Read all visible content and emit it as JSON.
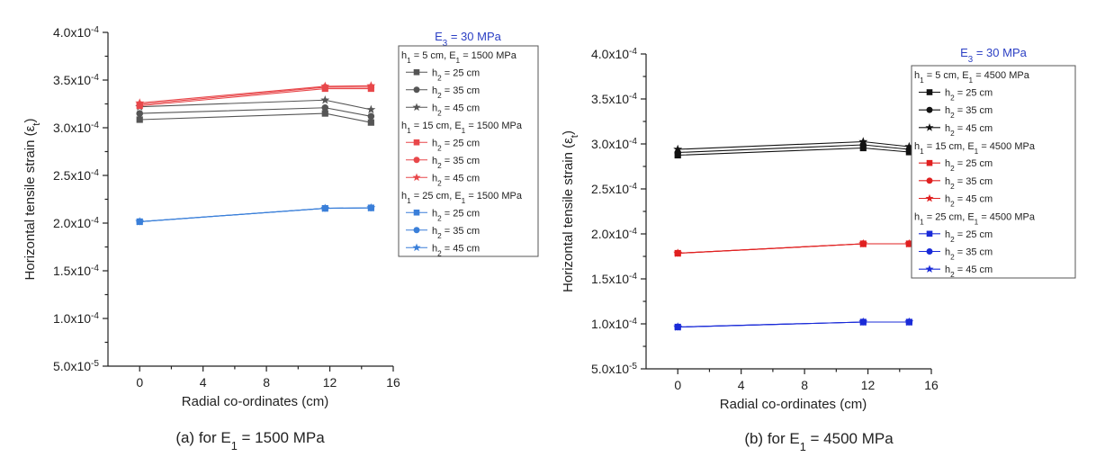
{
  "chart_data": [
    {
      "type": "line",
      "caption": "(a) for E1 = 1500 MPa",
      "caption_parts": {
        "pre": "(a) for E",
        "sub": "1",
        "post": " = 1500 MPa"
      },
      "xlabel": "Radial co-ordinates (cm)",
      "ylabel": "Horizontal tensile strain (εt)",
      "ylabel_parts": {
        "pre": "Horizontal tensile strain (ε",
        "sub": "t",
        "post": ")"
      },
      "xlim": [
        -2,
        16
      ],
      "ylim": [
        5e-05,
        0.0004
      ],
      "xticks": [
        0,
        4,
        8,
        12,
        16
      ],
      "xtick_labels": [
        "0",
        "4",
        "8",
        "12",
        "16"
      ],
      "yticks": [
        5e-05,
        0.0001,
        0.00015,
        0.0002,
        0.00025,
        0.0003,
        0.00035,
        0.0004
      ],
      "ytick_labels": [
        {
          "mant": "5.0x10",
          "exp": "-5"
        },
        {
          "mant": "1.0x10",
          "exp": "-4"
        },
        {
          "mant": "1.5x10",
          "exp": "-4"
        },
        {
          "mant": "2.0x10",
          "exp": "-4"
        },
        {
          "mant": "2.5x10",
          "exp": "-4"
        },
        {
          "mant": "3.0x10",
          "exp": "-4"
        },
        {
          "mant": "3.5x10",
          "exp": "-4"
        },
        {
          "mant": "4.0x10",
          "exp": "-4"
        }
      ],
      "grid": false,
      "legend_title": {
        "pre": "E",
        "sub": "3",
        "post": " = 30 MPa"
      },
      "legend_groups": [
        {
          "label": {
            "pre": "h",
            "sub": "1",
            "mid": " = 5 cm, E",
            "sub2": "1",
            "post": " = 1500 MPa"
          }
        },
        {
          "label": {
            "pre": "h",
            "sub": "1",
            "mid": " = 15 cm, E",
            "sub2": "1",
            "post": " = 1500 MPa"
          }
        },
        {
          "label": {
            "pre": "h",
            "sub": "1",
            "mid": " = 25 cm, E",
            "sub2": "1",
            "post": " = 1500 MPa"
          }
        }
      ],
      "x": [
        0,
        11.7,
        14.6
      ],
      "series": [
        {
          "group": 0,
          "label": {
            "pre": "h",
            "sub": "2",
            "post": " = 25 cm"
          },
          "marker": "square",
          "color": "#555555",
          "values": [
            0.0003085,
            0.000315,
            0.0003055
          ]
        },
        {
          "group": 0,
          "label": {
            "pre": "h",
            "sub": "2",
            "post": " = 35 cm"
          },
          "marker": "circle",
          "color": "#555555",
          "values": [
            0.000315,
            0.000321,
            0.000312
          ]
        },
        {
          "group": 0,
          "label": {
            "pre": "h",
            "sub": "2",
            "post": " = 45 cm"
          },
          "marker": "star",
          "color": "#555555",
          "values": [
            0.000322,
            0.000329,
            0.000319
          ]
        },
        {
          "group": 1,
          "label": {
            "pre": "h",
            "sub": "2",
            "post": " = 25 cm"
          },
          "marker": "square",
          "color": "#e8474a",
          "values": [
            0.000323,
            0.000341,
            0.000341
          ]
        },
        {
          "group": 1,
          "label": {
            "pre": "h",
            "sub": "2",
            "post": " = 35 cm"
          },
          "marker": "circle",
          "color": "#e8474a",
          "values": [
            0.0003245,
            0.0003425,
            0.0003425
          ]
        },
        {
          "group": 1,
          "label": {
            "pre": "h",
            "sub": "2",
            "post": " = 45 cm"
          },
          "marker": "star",
          "color": "#e8474a",
          "values": [
            0.000326,
            0.0003435,
            0.000344
          ]
        },
        {
          "group": 2,
          "label": {
            "pre": "h",
            "sub": "2",
            "post": " = 25 cm"
          },
          "marker": "square",
          "color": "#3a7fd9",
          "values": [
            0.0002015,
            0.0002155,
            0.000216
          ]
        },
        {
          "group": 2,
          "label": {
            "pre": "h",
            "sub": "2",
            "post": " = 35 cm"
          },
          "marker": "circle",
          "color": "#3a7fd9",
          "values": [
            0.0002015,
            0.0002155,
            0.000216
          ]
        },
        {
          "group": 2,
          "label": {
            "pre": "h",
            "sub": "2",
            "post": " = 45 cm"
          },
          "marker": "star",
          "color": "#3a7fd9",
          "values": [
            0.0002015,
            0.0002155,
            0.000216
          ]
        }
      ]
    },
    {
      "type": "line",
      "caption": "(b) for E1 = 4500 MPa",
      "caption_parts": {
        "pre": "(b) for E",
        "sub": "1",
        "post": " = 4500 MPa"
      },
      "xlabel": "Radial co-ordinates (cm)",
      "ylabel": "Horizontal tensile strain (εt)",
      "ylabel_parts": {
        "pre": "Horizontal tensile strain (ε",
        "sub": "t",
        "post": ")"
      },
      "xlim": [
        -2,
        16
      ],
      "ylim": [
        5e-05,
        0.0004
      ],
      "xticks": [
        0,
        4,
        8,
        12,
        16
      ],
      "xtick_labels": [
        "0",
        "4",
        "8",
        "12",
        "16"
      ],
      "yticks": [
        5e-05,
        0.0001,
        0.00015,
        0.0002,
        0.00025,
        0.0003,
        0.00035,
        0.0004
      ],
      "ytick_labels": [
        {
          "mant": "5.0x10",
          "exp": "-5"
        },
        {
          "mant": "1.0x10",
          "exp": "-4"
        },
        {
          "mant": "1.5x10",
          "exp": "-4"
        },
        {
          "mant": "2.0x10",
          "exp": "-4"
        },
        {
          "mant": "2.5x10",
          "exp": "-4"
        },
        {
          "mant": "3.0x10",
          "exp": "-4"
        },
        {
          "mant": "3.5x10",
          "exp": "-4"
        },
        {
          "mant": "4.0x10",
          "exp": "-4"
        }
      ],
      "grid": false,
      "legend_title": {
        "pre": "E",
        "sub": "3",
        "post": " = 30 MPa"
      },
      "legend_groups": [
        {
          "label": {
            "pre": "h",
            "sub": "1",
            "mid": " = 5 cm, E",
            "sub2": "1",
            "post": " = 4500 MPa"
          }
        },
        {
          "label": {
            "pre": "h",
            "sub": "1",
            "mid": " = 15 cm, E",
            "sub2": "1",
            "post": " = 4500 MPa"
          }
        },
        {
          "label": {
            "pre": "h",
            "sub": "1",
            "mid": " = 25 cm, E",
            "sub2": "1",
            "post": " = 4500 MPa"
          }
        }
      ],
      "x": [
        0,
        11.7,
        14.6
      ],
      "series": [
        {
          "group": 0,
          "label": {
            "pre": "h",
            "sub": "2",
            "post": " = 25 cm"
          },
          "marker": "square",
          "color": "#111111",
          "values": [
            0.0002875,
            0.0002955,
            0.000291
          ]
        },
        {
          "group": 0,
          "label": {
            "pre": "h",
            "sub": "2",
            "post": " = 35 cm"
          },
          "marker": "circle",
          "color": "#111111",
          "values": [
            0.0002905,
            0.000299,
            0.000294
          ]
        },
        {
          "group": 0,
          "label": {
            "pre": "h",
            "sub": "2",
            "post": " = 45 cm"
          },
          "marker": "star",
          "color": "#111111",
          "values": [
            0.000294,
            0.0003025,
            0.000297
          ]
        },
        {
          "group": 1,
          "label": {
            "pre": "h",
            "sub": "2",
            "post": " = 25 cm"
          },
          "marker": "square",
          "color": "#e02020",
          "values": [
            0.0001785,
            0.000189,
            0.000189
          ]
        },
        {
          "group": 1,
          "label": {
            "pre": "h",
            "sub": "2",
            "post": " = 35 cm"
          },
          "marker": "circle",
          "color": "#e02020",
          "values": [
            0.0001785,
            0.000189,
            0.000189
          ]
        },
        {
          "group": 1,
          "label": {
            "pre": "h",
            "sub": "2",
            "post": " = 45 cm"
          },
          "marker": "star",
          "color": "#e02020",
          "values": [
            0.0001785,
            0.000189,
            0.000189
          ]
        },
        {
          "group": 2,
          "label": {
            "pre": "h",
            "sub": "2",
            "post": " = 25 cm"
          },
          "marker": "square",
          "color": "#1a2bd8",
          "values": [
            9.65e-05,
            0.000102,
            0.000102
          ]
        },
        {
          "group": 2,
          "label": {
            "pre": "h",
            "sub": "2",
            "post": " = 35 cm"
          },
          "marker": "circle",
          "color": "#1a2bd8",
          "values": [
            9.65e-05,
            0.000102,
            0.000102
          ]
        },
        {
          "group": 2,
          "label": {
            "pre": "h",
            "sub": "2",
            "post": " = 45 cm"
          },
          "marker": "star",
          "color": "#1a2bd8",
          "values": [
            9.65e-05,
            0.000102,
            0.000102
          ]
        }
      ]
    }
  ]
}
